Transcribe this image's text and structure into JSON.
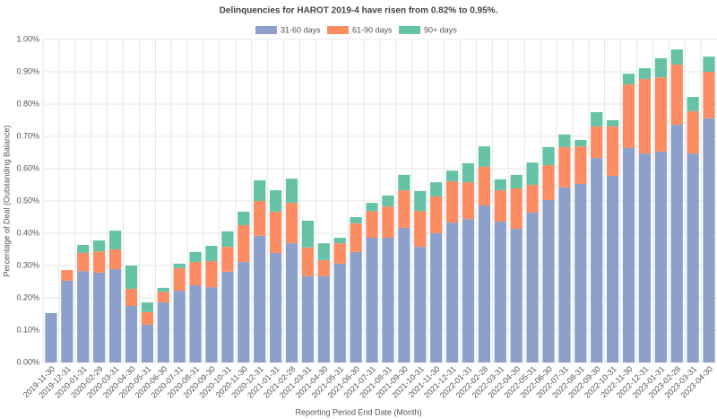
{
  "chart_data": {
    "type": "bar",
    "stacked": true,
    "title": "Delinquencies for HAROT 2019-4 have risen from 0.82% to 0.95%.",
    "x_label": "Reporting Period End Date (Month)",
    "y_label": "Percentage of Deal (Outstanding Balance)",
    "categories": [
      "2019-11-30",
      "2019-12-31",
      "2020-01-31",
      "2020-02-29",
      "2020-03-31",
      "2020-04-30",
      "2020-05-31",
      "2020-06-30",
      "2020-07-31",
      "2020-08-31",
      "2020-09-30",
      "2020-10-31",
      "2020-11-30",
      "2020-12-31",
      "2021-01-31",
      "2021-02-28",
      "2021-03-31",
      "2021-04-30",
      "2021-05-31",
      "2021-06-30",
      "2021-07-31",
      "2021-08-31",
      "2021-09-30",
      "2021-10-31",
      "2021-11-30",
      "2021-12-31",
      "2022-01-31",
      "2022-02-28",
      "2022-03-31",
      "2022-04-30",
      "2022-05-31",
      "2022-06-30",
      "2022-07-31",
      "2022-08-31",
      "2022-09-30",
      "2022-10-31",
      "2022-11-30",
      "2022-12-31",
      "2023-01-31",
      "2023-02-28",
      "2023-03-31",
      "2023-04-30"
    ],
    "series": [
      {
        "name": "31-60 days",
        "color": "#8da0cb",
        "values": [
          0.153,
          0.253,
          0.283,
          0.278,
          0.289,
          0.175,
          0.117,
          0.186,
          0.222,
          0.239,
          0.233,
          0.281,
          0.311,
          0.392,
          0.339,
          0.369,
          0.267,
          0.267,
          0.306,
          0.342,
          0.386,
          0.386,
          0.417,
          0.358,
          0.4,
          0.433,
          0.444,
          0.486,
          0.436,
          0.414,
          0.464,
          0.503,
          0.542,
          0.553,
          0.633,
          0.578,
          0.664,
          0.647,
          0.653,
          0.736,
          0.647,
          0.756
        ]
      },
      {
        "name": "61-90 days",
        "color": "#fc8d62",
        "values": [
          0,
          0.033,
          0.056,
          0.066,
          0.061,
          0.053,
          0.039,
          0.033,
          0.07,
          0.072,
          0.081,
          0.077,
          0.114,
          0.108,
          0.128,
          0.125,
          0.089,
          0.05,
          0.063,
          0.089,
          0.083,
          0.097,
          0.116,
          0.111,
          0.114,
          0.128,
          0.114,
          0.12,
          0.097,
          0.125,
          0.086,
          0.108,
          0.125,
          0.116,
          0.098,
          0.153,
          0.197,
          0.231,
          0.23,
          0.186,
          0.131,
          0.144
        ]
      },
      {
        "name": "90+ days",
        "color": "#66c2a5",
        "values": [
          0,
          0,
          0.025,
          0.034,
          0.058,
          0.072,
          0.03,
          0.012,
          0.014,
          0.031,
          0.047,
          0.048,
          0.042,
          0.064,
          0.066,
          0.075,
          0.083,
          0.052,
          0.017,
          0.019,
          0.025,
          0.034,
          0.048,
          0.062,
          0.044,
          0.033,
          0.059,
          0.063,
          0.034,
          0.042,
          0.069,
          0.056,
          0.039,
          0.02,
          0.044,
          0.019,
          0.033,
          0.033,
          0.059,
          0.047,
          0.044,
          0.047
        ]
      }
    ],
    "ylim": [
      0,
      1
    ],
    "yticks": [
      {
        "value": 0,
        "label": "0.00%"
      },
      {
        "value": 0.1,
        "label": "0.10%"
      },
      {
        "value": 0.2,
        "label": "0.20%"
      },
      {
        "value": 0.3,
        "label": "0.30%"
      },
      {
        "value": 0.4,
        "label": "0.40%"
      },
      {
        "value": 0.5,
        "label": "0.50%"
      },
      {
        "value": 0.6,
        "label": "0.60%"
      },
      {
        "value": 0.7,
        "label": "0.70%"
      },
      {
        "value": 0.8,
        "label": "0.80%"
      },
      {
        "value": 0.9,
        "label": "0.90%"
      },
      {
        "value": 1,
        "label": "1.00%"
      }
    ],
    "grid": true,
    "legend": "top"
  }
}
